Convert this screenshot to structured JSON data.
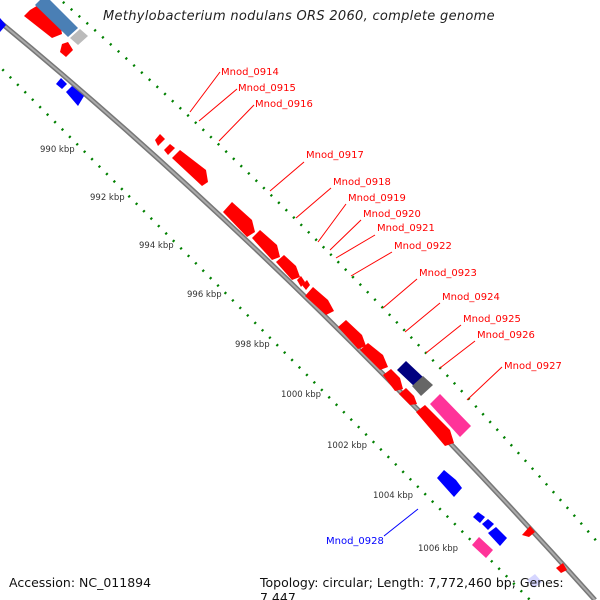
{
  "title": "Methylobacterium nodulans ORS 2060, complete genome",
  "footer": {
    "accession": "Accession: NC_011894",
    "summary": "Topology: circular; Length: 7,772,460 bp; Genes: 7,447"
  },
  "ticks": [
    "990 kbp",
    "992 kbp",
    "994 kbp",
    "996 kbp",
    "998 kbp",
    "1000 kbp",
    "1002 kbp",
    "1004 kbp",
    "1006 kbp"
  ],
  "gene_labels": [
    "Mnod_0914",
    "Mnod_0915",
    "Mnod_0916",
    "Mnod_0917",
    "Mnod_0918",
    "Mnod_0919",
    "Mnod_0920",
    "Mnod_0921",
    "Mnod_0922",
    "Mnod_0923",
    "Mnod_0924",
    "Mnod_0925",
    "Mnod_0926",
    "Mnod_0927",
    "Mnod_0928"
  ],
  "colors": {
    "forward": "#ff0000",
    "reverse": "#0000ff",
    "backbone": "#888888",
    "ticks": "#008000",
    "pink": "#ff3399"
  }
}
